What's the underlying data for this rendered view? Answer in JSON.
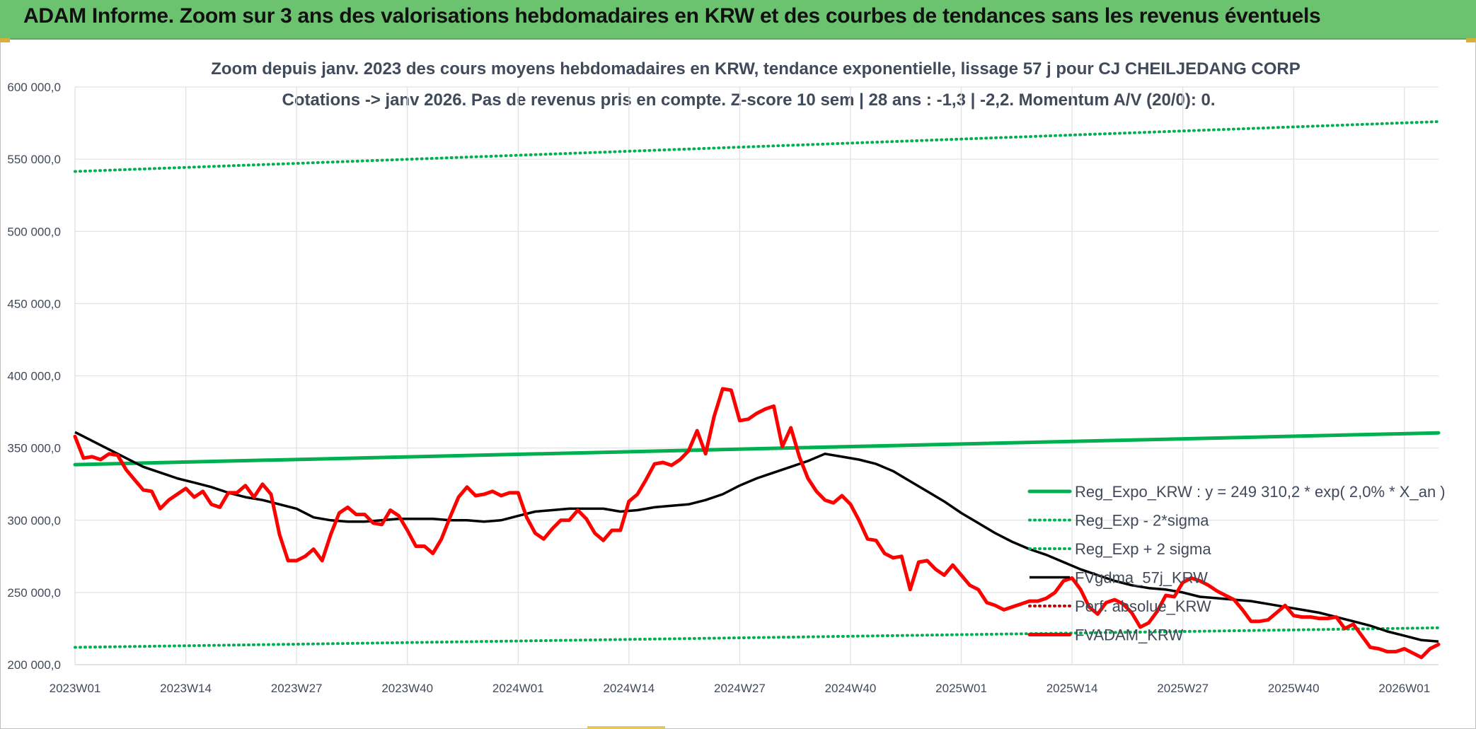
{
  "banner": {
    "title": "ADAM Informe. Zoom sur 3 ans des valorisations hebdomadaires en KRW et des courbes de tendances sans les revenus éventuels",
    "color": "#6cc36f"
  },
  "chart_data": {
    "type": "line",
    "title": "Zoom depuis janv. 2023 des cours moyens hebdomadaires en KRW, tendance exponentielle, lissage 57 j pour CJ CHEILJEDANG CORP",
    "subtitle": "Cotations -> janv 2026. Pas de revenus pris en compte. Z-score 10 sem | 28 ans : -1,3 | -2,2. Momentum A/V (20/0): 0.",
    "xlabel": "",
    "ylabel": "",
    "ylim": [
      200000,
      600000
    ],
    "y_ticks": [
      "200 000,0",
      "250 000,0",
      "300 000,0",
      "350 000,0",
      "400 000,0",
      "450 000,0",
      "500 000,0",
      "550 000,0",
      "600 000,0"
    ],
    "x_ticks": [
      "2023W01",
      "2023W14",
      "2023W27",
      "2023W40",
      "2024W01",
      "2024W14",
      "2024W27",
      "2024W40",
      "2025W01",
      "2025W14",
      "2025W27",
      "2025W40",
      "2026W01"
    ],
    "grid": true,
    "legend_position": "bottom-right",
    "series": [
      {
        "name": "Reg_Expo_KRW : y = 249 310,2 * exp( 2,0% *  X_an )",
        "color": "#00b050",
        "style": "solid-thick",
        "x": [
          0,
          160
        ],
        "y": [
          338500,
          360500
        ]
      },
      {
        "name": "Reg_Exp - 2*sigma",
        "color": "#00b050",
        "style": "dotted",
        "x": [
          0,
          160
        ],
        "y": [
          212000,
          225500
        ]
      },
      {
        "name": "Reg_Exp + 2 sigma",
        "color": "#00b050",
        "style": "dotted",
        "x": [
          0,
          160
        ],
        "y": [
          541500,
          576000
        ]
      },
      {
        "name": "FVgdma_57j_KRW",
        "color": "#000000",
        "style": "solid",
        "x": [
          0,
          2,
          4,
          6,
          8,
          10,
          12,
          14,
          16,
          18,
          20,
          22,
          24,
          26,
          28,
          30,
          32,
          34,
          36,
          38,
          40,
          42,
          44,
          46,
          48,
          50,
          52,
          54,
          56,
          58,
          60,
          62,
          64,
          66,
          68,
          70,
          72,
          74,
          76,
          78,
          80,
          82,
          84,
          86,
          88,
          90,
          92,
          94,
          96,
          98,
          100,
          102,
          104,
          106,
          108,
          110,
          112,
          114,
          116,
          118,
          120,
          122,
          124,
          126,
          128,
          130,
          132,
          134,
          136,
          138,
          140,
          142,
          144,
          146,
          148,
          150,
          152,
          154,
          156,
          158,
          160
        ],
        "y": [
          361000,
          355000,
          349000,
          343000,
          337000,
          333000,
          329000,
          326000,
          323000,
          319000,
          316000,
          314000,
          311000,
          308000,
          302000,
          300000,
          299000,
          299000,
          300000,
          301000,
          301000,
          301000,
          300000,
          300000,
          299000,
          300000,
          303000,
          306000,
          307000,
          308000,
          308000,
          308000,
          306000,
          307000,
          309000,
          310000,
          311000,
          314000,
          318000,
          324000,
          329000,
          333000,
          337000,
          341000,
          346000,
          344000,
          342000,
          339000,
          334000,
          327000,
          320000,
          313000,
          305000,
          298000,
          291000,
          285000,
          280000,
          276000,
          271000,
          266000,
          262000,
          258000,
          255000,
          253000,
          252000,
          250000,
          247000,
          246000,
          245000,
          244000,
          242000,
          240000,
          238000,
          236000,
          233000,
          230000,
          227000,
          223000,
          220000,
          217000,
          216000
        ]
      },
      {
        "name": "Perf. absolue_KRW",
        "color": "#c00000",
        "style": "dotted",
        "x": [],
        "y": []
      },
      {
        "name": "FVADAM_KRW",
        "color": "#ff0000",
        "style": "solid-thick",
        "x": [
          0,
          1,
          2,
          3,
          4,
          5,
          6,
          7,
          8,
          9,
          10,
          11,
          12,
          13,
          14,
          15,
          16,
          17,
          18,
          19,
          20,
          21,
          22,
          23,
          24,
          25,
          26,
          27,
          28,
          29,
          30,
          31,
          32,
          33,
          34,
          35,
          36,
          37,
          38,
          39,
          40,
          41,
          42,
          43,
          44,
          45,
          46,
          47,
          48,
          49,
          50,
          51,
          52,
          53,
          54,
          55,
          56,
          57,
          58,
          59,
          60,
          61,
          62,
          63,
          64,
          65,
          66,
          67,
          68,
          69,
          70,
          71,
          72,
          73,
          74,
          75,
          76,
          77,
          78,
          79,
          80,
          81,
          82,
          83,
          84,
          85,
          86,
          87,
          88,
          89,
          90,
          91,
          92,
          93,
          94,
          95,
          96,
          97,
          98,
          99,
          100,
          101,
          102,
          103,
          104,
          105,
          106,
          107,
          108,
          109,
          110,
          111,
          112,
          113,
          114,
          115,
          116,
          117,
          118,
          119,
          120,
          121,
          122,
          123,
          124,
          125,
          126,
          127,
          128,
          129,
          130,
          131,
          132,
          133,
          134,
          135,
          136,
          137,
          138,
          139,
          140,
          141,
          142,
          143,
          144,
          145,
          146,
          147,
          148,
          149,
          150,
          151,
          152,
          153,
          154,
          155,
          156,
          157,
          158,
          159,
          160
        ],
        "y": [
          358000,
          343000,
          344000,
          342000,
          346000,
          345000,
          335000,
          328000,
          321000,
          320000,
          308000,
          314000,
          318000,
          322000,
          316000,
          320000,
          311000,
          309000,
          319000,
          319000,
          324000,
          316000,
          325000,
          318000,
          290000,
          272000,
          272000,
          275000,
          280000,
          272000,
          290000,
          305000,
          309000,
          304000,
          304000,
          298000,
          297000,
          307000,
          303000,
          293000,
          282000,
          282000,
          277000,
          287000,
          302000,
          316000,
          323000,
          317000,
          318000,
          320000,
          317000,
          319000,
          319000,
          302000,
          291000,
          287000,
          294000,
          300000,
          300000,
          307000,
          301000,
          291000,
          286000,
          293000,
          293000,
          313000,
          318000,
          328000,
          339000,
          340000,
          338000,
          342000,
          348000,
          362000,
          346000,
          372000,
          391000,
          390000,
          369000,
          370000,
          374000,
          377000,
          379000,
          351000,
          364000,
          344000,
          329000,
          320000,
          314000,
          312000,
          317000,
          311000,
          300000,
          287000,
          286000,
          277000,
          274000,
          275000,
          252000,
          271000,
          272000,
          266000,
          262000,
          269000,
          262000,
          255000,
          252000,
          243000,
          241000,
          238000,
          240000,
          242000,
          244000,
          244000,
          246000,
          250000,
          258000,
          260000,
          252000,
          240000,
          235000,
          243000,
          245000,
          242000,
          236000,
          226000,
          229000,
          237000,
          248000,
          247000,
          257000,
          260000,
          258000,
          255000,
          251000,
          248000,
          245000,
          238000,
          230000,
          230000,
          231000,
          236000,
          241000,
          234000,
          233000,
          233000,
          232000,
          232000,
          233000,
          225000,
          228000,
          220000,
          212000,
          211000,
          209000,
          209000,
          211000,
          208000,
          205000,
          211000,
          214000
        ]
      }
    ]
  }
}
